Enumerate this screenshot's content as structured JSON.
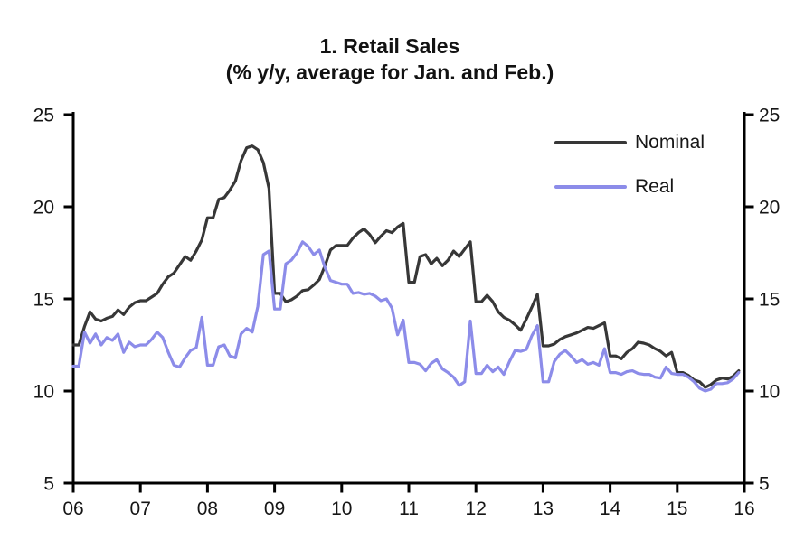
{
  "figure": {
    "background": "#ffffff",
    "axis_color": "#000000",
    "text_color": "#161616"
  },
  "chart_data": {
    "type": "line",
    "title": "1. Retail Sales",
    "subtitle": "(% y/y, average for Jan. and Feb.)",
    "frequency": "monthly",
    "xlim": [
      2006,
      2016
    ],
    "ylim": [
      5,
      25
    ],
    "grid": false,
    "legend_position": "top-right",
    "x_tick_labels": [
      "06",
      "07",
      "08",
      "09",
      "10",
      "11",
      "12",
      "13",
      "14",
      "15",
      "16"
    ],
    "y_ticks": [
      25,
      20,
      15,
      10,
      5
    ],
    "y_tick_labels_left": [
      "25",
      "20",
      "15",
      "10",
      "5"
    ],
    "y_tick_labels_right": [
      "25",
      "20",
      "15",
      "10",
      "5"
    ],
    "series": [
      {
        "name": "Nominal",
        "color": "#373737",
        "start": "2006-01",
        "values": [
          12.5,
          12.5,
          13.5,
          14.3,
          13.9,
          13.8,
          13.95,
          14.05,
          14.4,
          14.15,
          14.55,
          14.8,
          14.9,
          14.9,
          15.1,
          15.3,
          15.8,
          16.2,
          16.4,
          16.85,
          17.3,
          17.1,
          17.6,
          18.2,
          19.4,
          19.4,
          20.4,
          20.5,
          20.9,
          21.4,
          22.5,
          23.2,
          23.3,
          23.1,
          22.4,
          21.0,
          15.3,
          15.3,
          14.85,
          14.95,
          15.15,
          15.45,
          15.5,
          15.75,
          16.05,
          16.8,
          17.65,
          17.9,
          17.9,
          17.9,
          18.3,
          18.6,
          18.8,
          18.5,
          18.05,
          18.4,
          18.7,
          18.6,
          18.9,
          19.1,
          15.9,
          15.9,
          17.3,
          17.4,
          16.9,
          17.2,
          16.8,
          17.1,
          17.6,
          17.3,
          17.7,
          18.1,
          14.85,
          14.85,
          15.2,
          14.85,
          14.3,
          14.0,
          13.85,
          13.6,
          13.3,
          13.9,
          14.55,
          15.25,
          12.45,
          12.45,
          12.55,
          12.8,
          12.95,
          13.05,
          13.15,
          13.3,
          13.45,
          13.4,
          13.55,
          13.7,
          11.9,
          11.9,
          11.75,
          12.1,
          12.3,
          12.65,
          12.6,
          12.5,
          12.3,
          12.15,
          11.9,
          12.1,
          11.0,
          11.0,
          10.85,
          10.6,
          10.5,
          10.2,
          10.35,
          10.6,
          10.7,
          10.65,
          10.8,
          11.1
        ]
      },
      {
        "name": "Real",
        "color": "#8c8ce9",
        "start": "2006-01",
        "values": [
          11.35,
          11.35,
          13.2,
          12.6,
          13.1,
          12.5,
          12.9,
          12.75,
          13.1,
          12.1,
          12.65,
          12.4,
          12.5,
          12.5,
          12.8,
          13.2,
          12.9,
          12.1,
          11.4,
          11.3,
          11.8,
          12.2,
          12.35,
          14.0,
          11.4,
          11.4,
          12.4,
          12.5,
          11.9,
          11.8,
          13.1,
          13.4,
          13.2,
          14.6,
          17.4,
          17.6,
          14.45,
          14.45,
          16.9,
          17.1,
          17.5,
          18.1,
          17.85,
          17.4,
          17.65,
          16.7,
          16.0,
          15.9,
          15.8,
          15.8,
          15.3,
          15.35,
          15.25,
          15.3,
          15.15,
          14.9,
          15.0,
          14.5,
          13.05,
          13.85,
          11.55,
          11.55,
          11.45,
          11.1,
          11.5,
          11.7,
          11.2,
          11.0,
          10.75,
          10.3,
          10.5,
          13.8,
          10.95,
          10.95,
          11.4,
          11.05,
          11.3,
          10.9,
          11.6,
          12.2,
          12.15,
          12.25,
          13.0,
          13.55,
          10.5,
          10.5,
          11.6,
          12.0,
          12.2,
          11.9,
          11.55,
          11.7,
          11.45,
          11.55,
          11.4,
          12.3,
          11.0,
          11.0,
          10.9,
          11.05,
          11.1,
          10.95,
          10.9,
          10.9,
          10.75,
          10.7,
          11.3,
          10.95,
          10.9,
          10.9,
          10.75,
          10.5,
          10.15,
          10.0,
          10.1,
          10.4,
          10.4,
          10.45,
          10.65,
          11.0
        ]
      }
    ]
  }
}
